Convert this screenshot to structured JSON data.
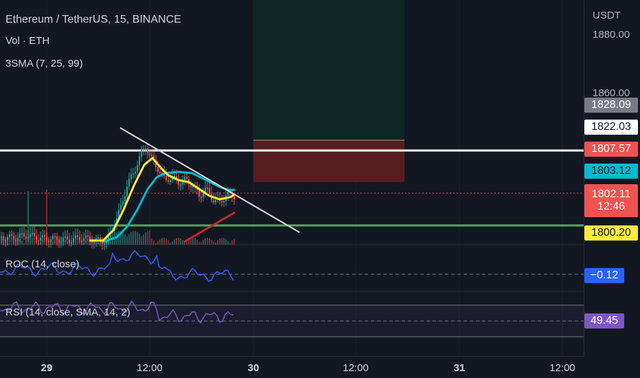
{
  "legend": {
    "symbol_title": "Ethereum / TetherUS, 15, BINANCE",
    "volume": "Vol · ETH",
    "sma": "3SMA (7, 25, 99)"
  },
  "indicators": {
    "roc_title": "ROC (14, close)",
    "rsi_title": "RSI (14, close, SMA, 14, 2)"
  },
  "price_scale": {
    "currency": "USDT",
    "ticks": [
      "1880.00",
      "1860.00"
    ],
    "tags": {
      "grey": "1828.09",
      "white": "1822.03",
      "red_upper": "1807.57",
      "cyan": "1803.12",
      "last_price": "1802.11",
      "countdown": "12:46",
      "yellow": "1800.20",
      "roc_value": "−0.12",
      "rsi_value": "49.45"
    }
  },
  "time_axis": {
    "labels": [
      "29",
      "12:00",
      "30",
      "12:00",
      "31",
      "12:00"
    ]
  },
  "colors": {
    "background": "#131722",
    "candle_up": "#26a69a",
    "candle_down": "#ef5350",
    "sma7": "#ffeb3b",
    "sma25": "#00bcd4",
    "support_line": "#4caf50",
    "resistance_line": "#ffffff",
    "roc_line": "#2962ff",
    "rsi_line": "#7e57c2"
  }
}
